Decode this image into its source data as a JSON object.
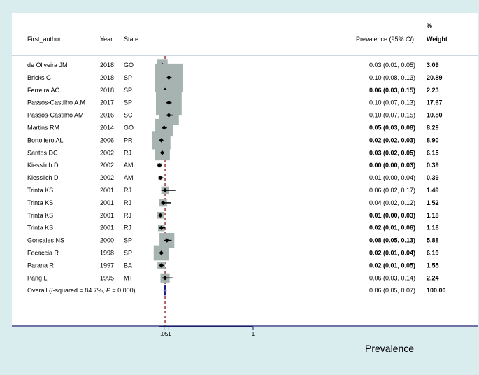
{
  "chart_data": {
    "type": "forest",
    "headers": {
      "author": "First_author",
      "year": "Year",
      "state": "State",
      "estimate": "Prevalence (95% CI)",
      "weight_top": "%",
      "weight": "Weight"
    },
    "xlabel": "Prevalence",
    "xticks": [
      ".05",
      ".1",
      "1"
    ],
    "xtick_values": [
      0.05,
      0.1,
      1
    ],
    "reference_line": 0.06,
    "studies": [
      {
        "author": "de Oliveira JM",
        "year": "2018",
        "state": "GO",
        "est": 0.03,
        "lo": 0.01,
        "hi": 0.05,
        "ci_text": "0.03 (0.01, 0.05)",
        "weight": "3.09",
        "bold": false
      },
      {
        "author": "Bricks G",
        "year": "2018",
        "state": "SP",
        "est": 0.1,
        "lo": 0.08,
        "hi": 0.13,
        "ci_text": "0.10 (0.08, 0.13)",
        "weight": "20.89",
        "bold": false
      },
      {
        "author": "Ferreira AC",
        "year": "2018",
        "state": "SP",
        "est": 0.06,
        "lo": 0.03,
        "hi": 0.15,
        "ci_text": "0.06 (0.03, 0.15)",
        "weight": "2.23",
        "bold": true
      },
      {
        "author": "Passos-Castilho A.M",
        "year": "2017",
        "state": "SP",
        "est": 0.1,
        "lo": 0.07,
        "hi": 0.13,
        "ci_text": "0.10 (0.07, 0.13)",
        "weight": "17.67",
        "bold": false
      },
      {
        "author": "Passos-Castilho AM",
        "year": "2016",
        "state": "SC",
        "est": 0.1,
        "lo": 0.07,
        "hi": 0.15,
        "ci_text": "0.10 (0.07, 0.15)",
        "weight": "10.80",
        "bold": false
      },
      {
        "author": "Martins RM",
        "year": "2014",
        "state": "GO",
        "est": 0.05,
        "lo": 0.03,
        "hi": 0.08,
        "ci_text": "0.05 (0.03, 0.08)",
        "weight": "8.29",
        "bold": true
      },
      {
        "author": "Bortoliero AL",
        "year": "2006",
        "state": "PR",
        "est": 0.02,
        "lo": 0.02,
        "hi": 0.03,
        "ci_text": "0.02 (0.02, 0.03)",
        "weight": "8.90",
        "bold": true
      },
      {
        "author": "Santos DC",
        "year": "2002",
        "state": "RJ",
        "est": 0.03,
        "lo": 0.02,
        "hi": 0.05,
        "ci_text": "0.03 (0.02, 0.05)",
        "weight": "6.15",
        "bold": true
      },
      {
        "author": "Kiesslich D",
        "year": "2002",
        "state": "AM",
        "est": 0.0,
        "lo": 0.0,
        "hi": 0.03,
        "ci_text": "0.00 (0.00, 0.03)",
        "weight": "0.39",
        "bold": true
      },
      {
        "author": "Kiesslich D",
        "year": "2002",
        "state": "AM",
        "est": 0.01,
        "lo": 0.0,
        "hi": 0.04,
        "ci_text": "0.01 (0.00, 0.04)",
        "weight": "0.39",
        "bold": false
      },
      {
        "author": "Trinta KS",
        "year": "2001",
        "state": "RJ",
        "est": 0.06,
        "lo": 0.02,
        "hi": 0.17,
        "ci_text": "0.06 (0.02, 0.17)",
        "weight": "1.49",
        "bold": false
      },
      {
        "author": "Trinta KS",
        "year": "2001",
        "state": "RJ",
        "est": 0.04,
        "lo": 0.02,
        "hi": 0.12,
        "ci_text": "0.04 (0.02, 0.12)",
        "weight": "1.52",
        "bold": false
      },
      {
        "author": "Trinta KS",
        "year": "2001",
        "state": "RJ",
        "est": 0.01,
        "lo": 0.0,
        "hi": 0.03,
        "ci_text": "0.01 (0.00, 0.03)",
        "weight": "1.18",
        "bold": true
      },
      {
        "author": "Trinta KS",
        "year": "2001",
        "state": "RJ",
        "est": 0.02,
        "lo": 0.01,
        "hi": 0.06,
        "ci_text": "0.02 (0.01, 0.06)",
        "weight": "1.16",
        "bold": true
      },
      {
        "author": "Gonçales NS",
        "year": "2000",
        "state": "SP",
        "est": 0.08,
        "lo": 0.05,
        "hi": 0.13,
        "ci_text": "0.08 (0.05, 0.13)",
        "weight": "5.88",
        "bold": true
      },
      {
        "author": "Focaccia R",
        "year": "1998",
        "state": "SP",
        "est": 0.02,
        "lo": 0.01,
        "hi": 0.04,
        "ci_text": "0.02 (0.01, 0.04)",
        "weight": "6.19",
        "bold": true
      },
      {
        "author": "Parana R",
        "year": "1997",
        "state": "BA",
        "est": 0.02,
        "lo": 0.01,
        "hi": 0.05,
        "ci_text": "0.02 (0.01, 0.05)",
        "weight": "1.55",
        "bold": true
      },
      {
        "author": "Pang L",
        "year": "1995",
        "state": "MT",
        "est": 0.06,
        "lo": 0.03,
        "hi": 0.14,
        "ci_text": "0.06 (0.03, 0.14)",
        "weight": "2.24",
        "bold": false
      }
    ],
    "overall": {
      "label_prefix": "Overall  (",
      "i2_symbol": "I",
      "i2_text": "-squared = 84.7%, ",
      "p_symbol": "P",
      "p_text": " = 0.000)",
      "est": 0.06,
      "lo": 0.05,
      "hi": 0.07,
      "ci_text": "0.06 (0.05, 0.07)",
      "weight": "100.00"
    },
    "colors": {
      "box": "#a6b3b1",
      "ci": "#000000",
      "ref_line": "#8b1a1a",
      "diamond": "#1c1c8c",
      "axis": "#1c1c6e"
    }
  }
}
